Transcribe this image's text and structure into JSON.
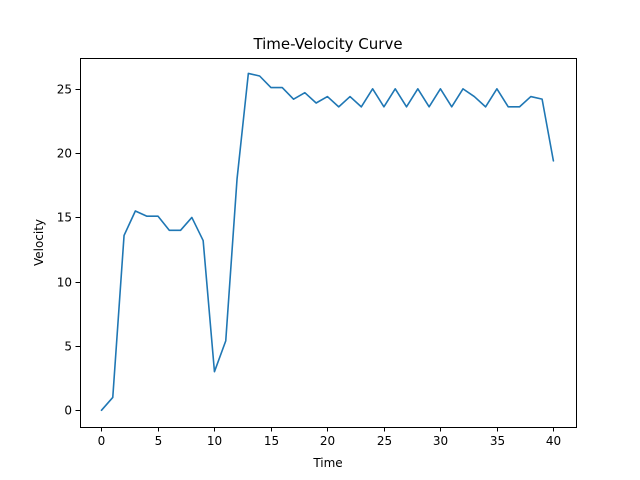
{
  "chart_data": {
    "type": "line",
    "title": "Time-Velocity Curve",
    "xlabel": "Time",
    "ylabel": "Velocity",
    "xlim": [
      -1.9,
      42
    ],
    "ylim": [
      -1.3,
      27.4
    ],
    "xticks": [
      0,
      5,
      10,
      15,
      20,
      25,
      30,
      35,
      40
    ],
    "yticks": [
      0,
      5,
      10,
      15,
      20,
      25
    ],
    "grid": false,
    "colors": {
      "series": "#1f77b4",
      "axes": "#000000",
      "background": "#ffffff"
    },
    "series": [
      {
        "x": [
          0,
          1,
          2,
          3,
          4,
          5,
          6,
          7,
          8,
          9,
          10,
          11,
          12,
          13,
          14,
          15,
          16,
          17,
          18,
          19,
          20,
          21,
          22,
          23,
          24,
          25,
          26,
          27,
          28,
          29,
          30,
          31,
          32,
          33,
          34,
          35,
          36,
          37,
          38,
          39,
          40
        ],
        "values": [
          0,
          1,
          13.6,
          15.5,
          15.1,
          15.1,
          14,
          14,
          15,
          13.2,
          3,
          5.4,
          18,
          26.2,
          26,
          25.1,
          25.1,
          24.2,
          24.7,
          23.9,
          24.4,
          23.6,
          24.4,
          23.6,
          25,
          23.6,
          25,
          23.6,
          25,
          23.6,
          25,
          23.6,
          25,
          24.4,
          23.6,
          25,
          23.6,
          23.6,
          24.4,
          24.2,
          19.4
        ]
      }
    ]
  }
}
